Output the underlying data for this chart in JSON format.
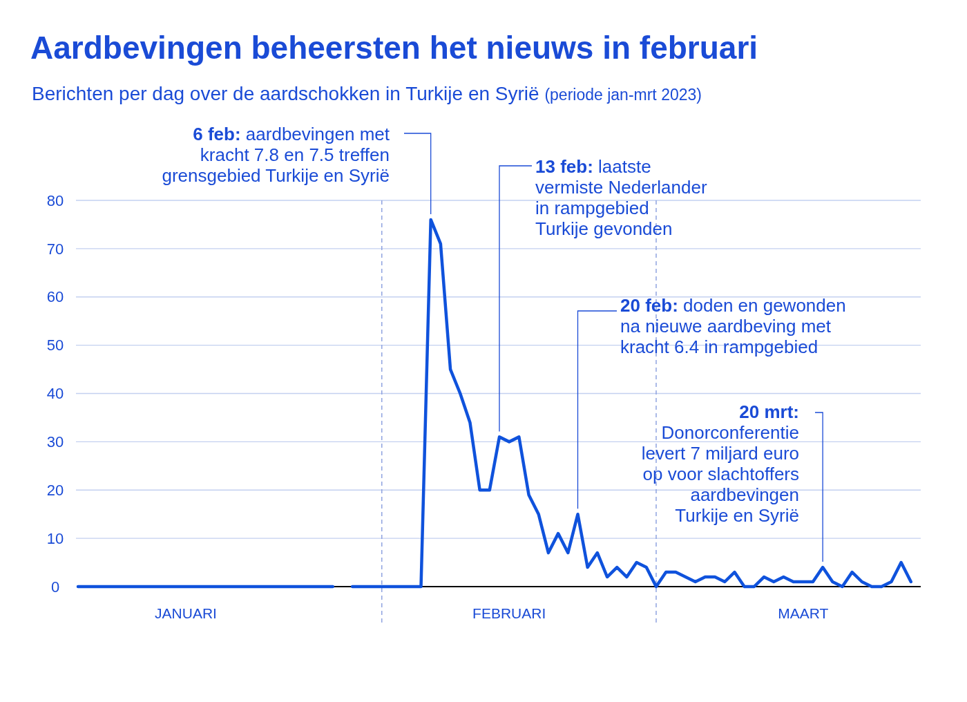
{
  "chart_data": {
    "type": "line",
    "title": "Aardbevingen beheersten het nieuws in februari",
    "subtitle": "Berichten per dag over de aardschokken in Turkije en Syrië (periode jan-mrt 2023)",
    "x": [
      "2023-01-01",
      "2023-01-02",
      "2023-01-03",
      "2023-01-04",
      "2023-01-05",
      "2023-01-06",
      "2023-01-07",
      "2023-01-08",
      "2023-01-09",
      "2023-01-10",
      "2023-01-11",
      "2023-01-12",
      "2023-01-13",
      "2023-01-14",
      "2023-01-15",
      "2023-01-16",
      "2023-01-17",
      "2023-01-18",
      "2023-01-19",
      "2023-01-20",
      "2023-01-21",
      "2023-01-22",
      "2023-01-23",
      "2023-01-24",
      "2023-01-25",
      "2023-01-26",
      "2023-01-27",
      "2023-01-28",
      "2023-01-29",
      "2023-01-30",
      "2023-01-31",
      "2023-02-01",
      "2023-02-02",
      "2023-02-03",
      "2023-02-04",
      "2023-02-05",
      "2023-02-06",
      "2023-02-07",
      "2023-02-08",
      "2023-02-09",
      "2023-02-10",
      "2023-02-11",
      "2023-02-12",
      "2023-02-13",
      "2023-02-14",
      "2023-02-15",
      "2023-02-16",
      "2023-02-17",
      "2023-02-18",
      "2023-02-19",
      "2023-02-20",
      "2023-02-21",
      "2023-02-22",
      "2023-02-23",
      "2023-02-24",
      "2023-02-25",
      "2023-02-26",
      "2023-02-27",
      "2023-02-28",
      "2023-03-01",
      "2023-03-02",
      "2023-03-03",
      "2023-03-04",
      "2023-03-05",
      "2023-03-06",
      "2023-03-07",
      "2023-03-08",
      "2023-03-09",
      "2023-03-10",
      "2023-03-11",
      "2023-03-12",
      "2023-03-13",
      "2023-03-14",
      "2023-03-15",
      "2023-03-16",
      "2023-03-17",
      "2023-03-18",
      "2023-03-19",
      "2023-03-20",
      "2023-03-21",
      "2023-03-22",
      "2023-03-23",
      "2023-03-24",
      "2023-03-25",
      "2023-03-26",
      "2023-03-27"
    ],
    "series": [
      {
        "color": "#0f52dc",
        "values": [
          0,
          0,
          0,
          0,
          0,
          0,
          0,
          0,
          0,
          0,
          0,
          0,
          0,
          0,
          0,
          0,
          0,
          0,
          0,
          0,
          0,
          0,
          0,
          0,
          0,
          0,
          0,
          null,
          0,
          0,
          0,
          0,
          0,
          0,
          0,
          0,
          76,
          71,
          45,
          40,
          34,
          20,
          20,
          31,
          30,
          31,
          19,
          15,
          7,
          11,
          7,
          15,
          4,
          7,
          2,
          4,
          2,
          5,
          4,
          0,
          3,
          3,
          2,
          1,
          2,
          2,
          1,
          3,
          0,
          0,
          2,
          1,
          2,
          1,
          1,
          1,
          4,
          1,
          0,
          3,
          1,
          0,
          0,
          1,
          5,
          1
        ]
      }
    ],
    "xlim": [
      "2023-01-01",
      "2023-03-28"
    ],
    "xticks": [
      {
        "value": "2023-01-12",
        "label": "JANUARI"
      },
      {
        "value": "2023-02-14",
        "label": "FEBRUARI"
      },
      {
        "value": "2023-03-16",
        "label": "MAART"
      }
    ],
    "ylim": [
      0,
      80
    ],
    "yticks": [
      0,
      10,
      20,
      30,
      40,
      50,
      60,
      70,
      80
    ],
    "grid": "y",
    "marker": "none",
    "line_style": "solid",
    "ref_lines": [
      {
        "axis": "x",
        "value": "2023-02-01",
        "line_style": "dashed",
        "color": "#8fa3e0"
      },
      {
        "axis": "x",
        "value": "2023-03-01",
        "line_style": "dashed",
        "color": "#8fa3e0"
      }
    ],
    "annotations": [
      {
        "text": "6 feb: aardbevingen met kracht 7.8 en 7.5 treffen grensgebied Turkije en Syrië",
        "x": "2023-02-06",
        "y": 76
      },
      {
        "text": "13 feb: laatste vermiste Nederlander in rampgebied Turkije gevonden",
        "x": "2023-02-13",
        "y": 31
      },
      {
        "text": "20 feb: doden en gewonden na nieuwe aardbeving met kracht 6.4 in rampgebied",
        "x": "2023-02-21",
        "y": 15
      },
      {
        "text": "20 mrt: Donorconferentie levert 7 miljard euro op voor slachtoffers aardbevingen Turkije en Syrië",
        "x": "2023-03-18",
        "y": 4
      }
    ]
  }
}
